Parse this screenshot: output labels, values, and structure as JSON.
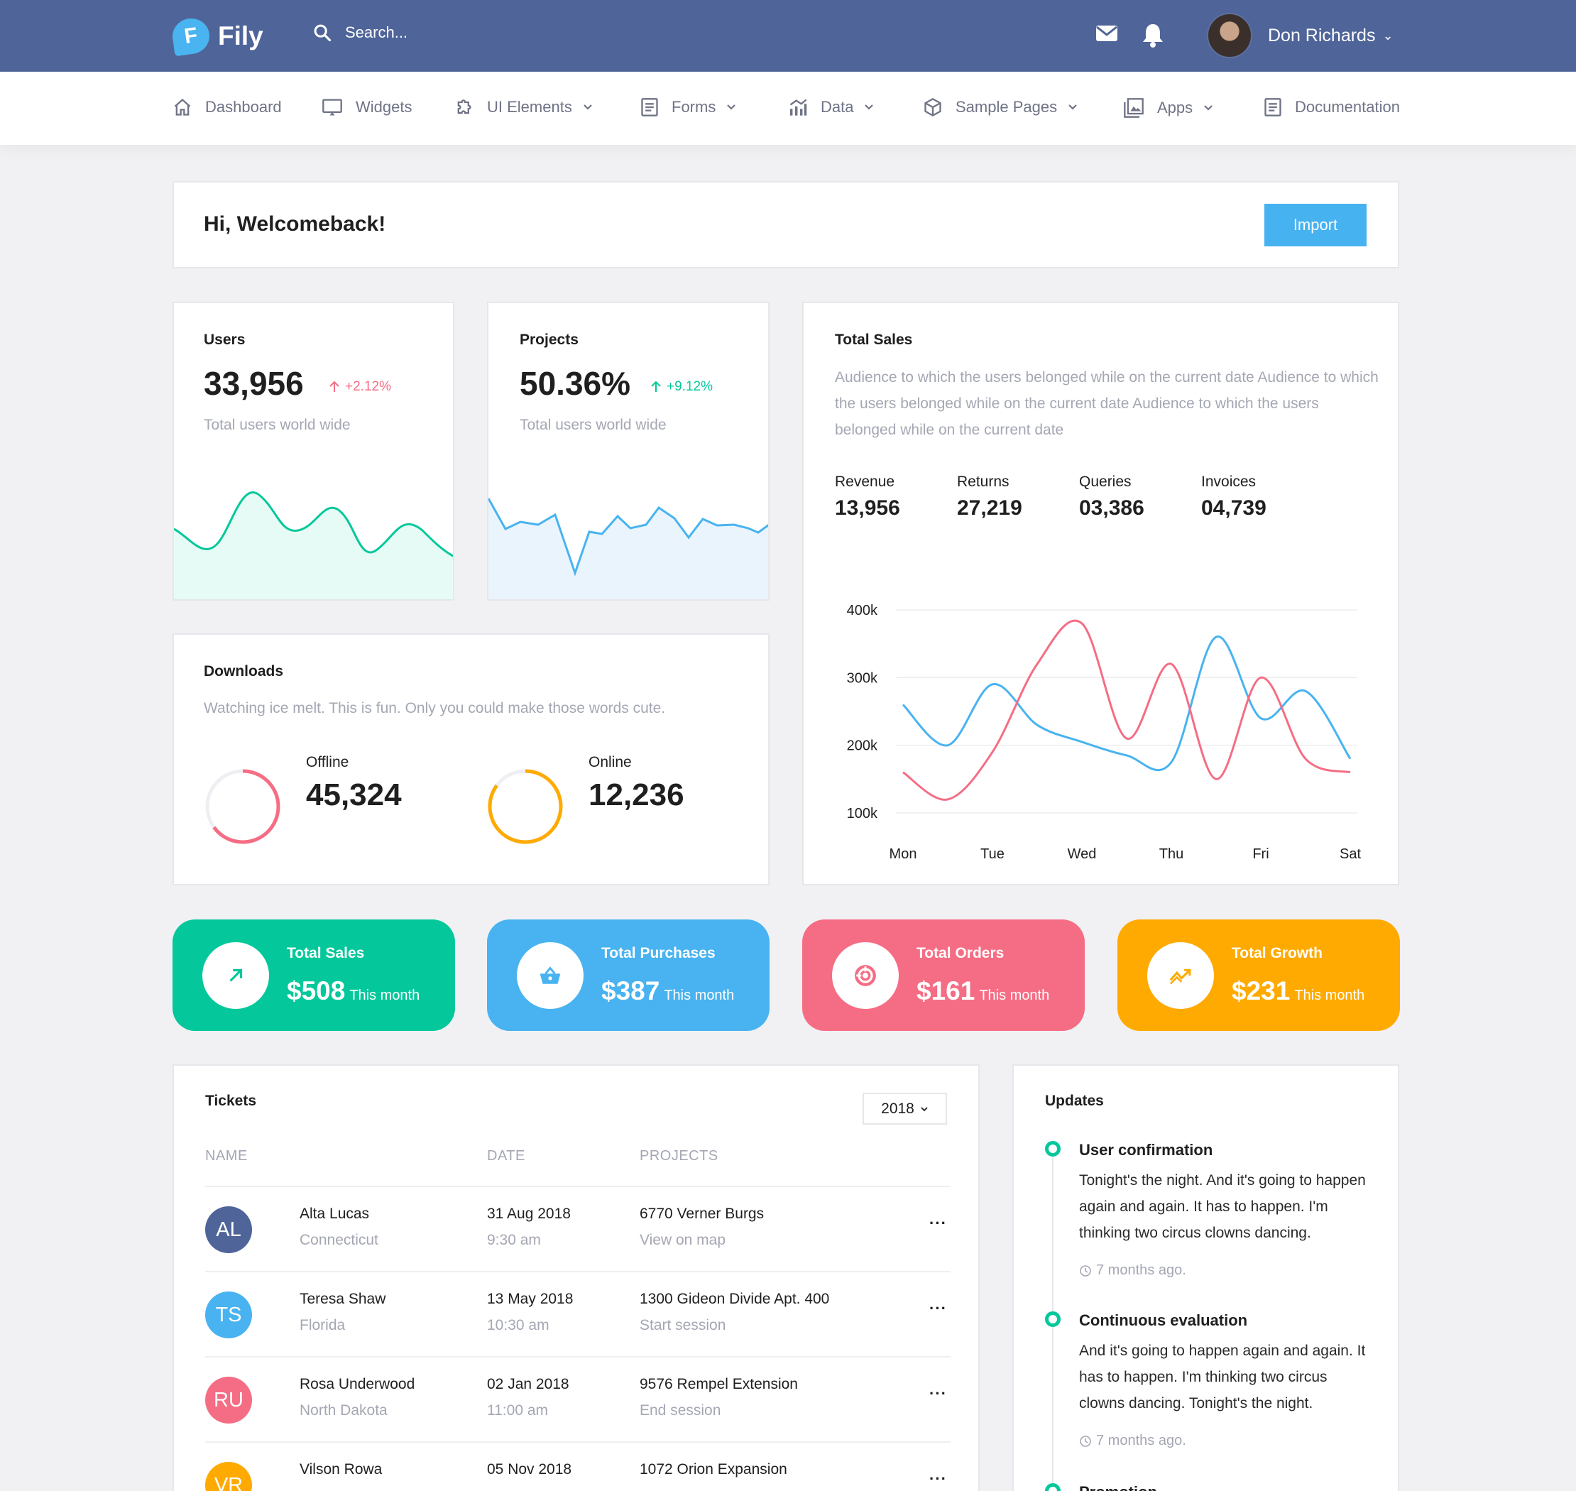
{
  "app": {
    "name": "Fily",
    "logo_letter": "F"
  },
  "search": {
    "placeholder": "Search..."
  },
  "user": {
    "name": "Don Richards"
  },
  "nav": [
    {
      "label": "Dashboard",
      "icon": "home-icon"
    },
    {
      "label": "Widgets",
      "icon": "monitor-icon"
    },
    {
      "label": "UI Elements",
      "icon": "puzzle-icon"
    },
    {
      "label": "Forms",
      "icon": "form-icon"
    },
    {
      "label": "Data",
      "icon": "bar-chart-icon"
    },
    {
      "label": "Sample Pages",
      "icon": "cube-icon"
    },
    {
      "label": "Apps",
      "icon": "gallery-icon"
    },
    {
      "label": "Documentation",
      "icon": "document-icon"
    }
  ],
  "welcome": {
    "title": "Hi, Welcomeback!",
    "import_label": "Import"
  },
  "users_card": {
    "title": "Users",
    "value": "33,956",
    "delta": "+2.12%",
    "sub": "Total users world wide",
    "delta_color": "#f56d84"
  },
  "projects_card": {
    "title": "Projects",
    "value": "50.36%",
    "delta": "+9.12%",
    "sub": "Total users world wide",
    "delta_color": "#04c89b"
  },
  "total_sales": {
    "title": "Total Sales",
    "description": "Audience to which the users belonged while on the current date Audience to which the users belonged while on the current date Audience to which the users belonged while on the current date",
    "stats": [
      {
        "label": "Revenue",
        "value": "13,956"
      },
      {
        "label": "Returns",
        "value": "27,219"
      },
      {
        "label": "Queries",
        "value": "03,386"
      },
      {
        "label": "Invoices",
        "value": "04,739"
      }
    ]
  },
  "chart_data": {
    "type": "line",
    "categories": [
      "Mon",
      "Tue",
      "Wed",
      "Thu",
      "Fri",
      "Sat"
    ],
    "y_ticks": [
      "400k",
      "300k",
      "200k",
      "100k"
    ],
    "ylim": [
      100,
      400
    ],
    "grid": true,
    "series": [
      {
        "color": "#48b3f0",
        "points": [
          [
            0,
            260
          ],
          [
            0.5,
            200
          ],
          [
            1,
            290
          ],
          [
            1.5,
            230
          ],
          [
            2,
            205
          ],
          [
            2.5,
            185
          ],
          [
            3,
            175
          ],
          [
            3.5,
            360
          ],
          [
            4,
            240
          ],
          [
            4.5,
            280
          ],
          [
            5,
            180
          ]
        ]
      },
      {
        "color": "#f56d84",
        "points": [
          [
            0,
            160
          ],
          [
            0.5,
            120
          ],
          [
            1,
            190
          ],
          [
            1.5,
            320
          ],
          [
            2,
            380
          ],
          [
            2.5,
            210
          ],
          [
            3,
            320
          ],
          [
            3.5,
            150
          ],
          [
            4,
            300
          ],
          [
            4.5,
            180
          ],
          [
            5,
            160
          ]
        ]
      }
    ]
  },
  "downloads": {
    "title": "Downloads",
    "description": "Watching ice melt. This is fun. Only you could make those words cute.",
    "offline": {
      "label": "Offline",
      "value": "45,324",
      "fraction": 0.65,
      "color": "#f56d84"
    },
    "online": {
      "label": "Online",
      "value": "12,236",
      "fraction": 0.85,
      "color": "#ffaa00"
    }
  },
  "tiles": [
    {
      "title": "Total Sales",
      "amount": "$508",
      "sub": "This month",
      "color": "#04c89b",
      "icon": "trend-up-arrow-icon"
    },
    {
      "title": "Total Purchases",
      "amount": "$387",
      "sub": "This month",
      "color": "#48b3f0",
      "icon": "basket-icon"
    },
    {
      "title": "Total Orders",
      "amount": "$161",
      "sub": "This month",
      "color": "#f56d84",
      "icon": "target-icon"
    },
    {
      "title": "Total Growth",
      "amount": "$231",
      "sub": "This month",
      "color": "#ffaa00",
      "icon": "growth-chart-icon"
    }
  ],
  "tickets": {
    "title": "Tickets",
    "year": "2018",
    "headers": [
      "NAME",
      "DATE",
      "PROJECTS"
    ],
    "rows": [
      {
        "initials": "AL",
        "color": "#4f6499",
        "name": "Alta Lucas",
        "state": "Connecticut",
        "date": "31 Aug 2018",
        "time": "9:30 am",
        "project": "6770 Verner Burgs",
        "action": "View on map"
      },
      {
        "initials": "TS",
        "color": "#48b3f0",
        "name": "Teresa Shaw",
        "state": "Florida",
        "date": "13 May 2018",
        "time": "10:30 am",
        "project": "1300 Gideon Divide Apt. 400",
        "action": "Start session"
      },
      {
        "initials": "RU",
        "color": "#f56d84",
        "name": "Rosa Underwood",
        "state": "North Dakota",
        "date": "02 Jan 2018",
        "time": "11:00 am",
        "project": "9576 Rempel Extension",
        "action": "End session"
      },
      {
        "initials": "VR",
        "color": "#ffaa00",
        "name": "Vilson Rowa",
        "state": "",
        "date": "05 Nov 2018",
        "time": "",
        "project": "1072 Orion Expansion",
        "action": ""
      }
    ]
  },
  "updates": {
    "title": "Updates",
    "items": [
      {
        "title": "User confirmation",
        "body": "Tonight's the night. And it's going to happen again and again. It has to happen. I'm thinking two circus clowns dancing.",
        "time": "7 months ago."
      },
      {
        "title": "Continuous evaluation",
        "body": "And it's going to happen again and again. It has to happen. I'm thinking two circus clowns dancing. Tonight's the night.",
        "time": "7 months ago."
      },
      {
        "title": "Promotion",
        "body": "",
        "time": ""
      }
    ]
  }
}
